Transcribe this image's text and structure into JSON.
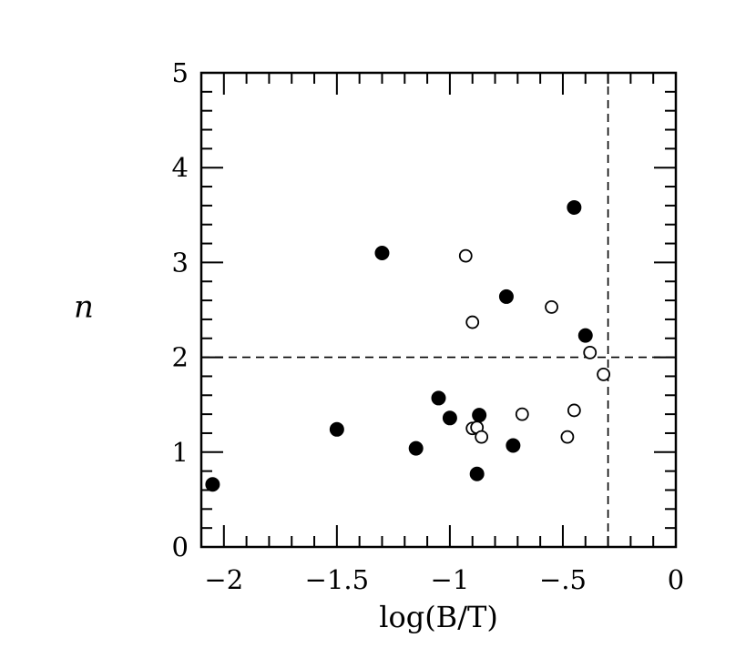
{
  "chart_data": {
    "type": "scatter",
    "xlabel": "log(B/T)",
    "ylabel": "n",
    "xlim": [
      -2.1,
      0
    ],
    "ylim": [
      0,
      5
    ],
    "x_ticks": [
      -2,
      -1.5,
      -1,
      -0.5,
      0
    ],
    "x_tick_labels": [
      "−2",
      "−1.5",
      "−1",
      "−.5",
      "0"
    ],
    "y_ticks": [
      0,
      1,
      2,
      3,
      4,
      5
    ],
    "y_tick_labels": [
      "0",
      "1",
      "2",
      "3",
      "4",
      "5"
    ],
    "grid": false,
    "reference_lines": [
      {
        "orientation": "horizontal",
        "value": 2,
        "style": "dashed"
      },
      {
        "orientation": "vertical",
        "value": -0.3,
        "style": "dashed"
      }
    ],
    "series": [
      {
        "marker": "filled-circle",
        "color": "#000000",
        "points": [
          {
            "x": -2.05,
            "y": 0.66
          },
          {
            "x": -1.5,
            "y": 1.24
          },
          {
            "x": -1.3,
            "y": 3.1
          },
          {
            "x": -1.15,
            "y": 1.04
          },
          {
            "x": -1.05,
            "y": 1.57
          },
          {
            "x": -1.0,
            "y": 1.36
          },
          {
            "x": -0.87,
            "y": 1.39
          },
          {
            "x": -0.88,
            "y": 0.77
          },
          {
            "x": -0.75,
            "y": 2.64
          },
          {
            "x": -0.72,
            "y": 1.07
          },
          {
            "x": -0.45,
            "y": 3.58
          },
          {
            "x": -0.4,
            "y": 2.23
          }
        ]
      },
      {
        "marker": "open-circle",
        "color": "#000000",
        "points": [
          {
            "x": -0.93,
            "y": 3.07
          },
          {
            "x": -0.9,
            "y": 2.37
          },
          {
            "x": -0.9,
            "y": 1.25
          },
          {
            "x": -0.88,
            "y": 1.26
          },
          {
            "x": -0.86,
            "y": 1.16
          },
          {
            "x": -0.68,
            "y": 1.4
          },
          {
            "x": -0.55,
            "y": 2.53
          },
          {
            "x": -0.48,
            "y": 1.16
          },
          {
            "x": -0.45,
            "y": 1.44
          },
          {
            "x": -0.38,
            "y": 2.05
          },
          {
            "x": -0.32,
            "y": 1.82
          }
        ]
      }
    ]
  }
}
